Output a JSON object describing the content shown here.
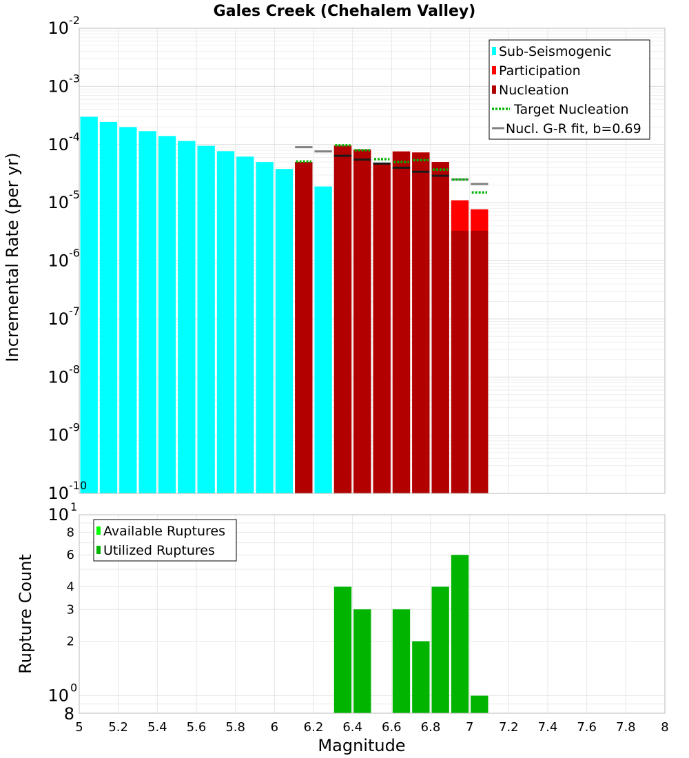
{
  "chart_data": [
    {
      "type": "bar",
      "title": "Gales Creek (Chehalem Valley)",
      "xlabel": "",
      "ylabel": "Incremental Rate (per yr)",
      "yscale": "log",
      "xlim": [
        5,
        8
      ],
      "ylim": [
        1e-10,
        0.01
      ],
      "y_tick_exponents": [
        "-10",
        "-9",
        "-8",
        "-7",
        "-6",
        "-5",
        "-4",
        "-3",
        "-2"
      ],
      "y_tick_base": "10",
      "bin_width": 0.1,
      "legend": {
        "placement": "top-right",
        "entries": [
          {
            "label": "Sub-Seismogenic",
            "color": "#00ffff",
            "style": "bar"
          },
          {
            "label": "Participation",
            "color": "#ff0000",
            "style": "bar"
          },
          {
            "label": "Nucleation",
            "color": "#b20000",
            "style": "bar"
          },
          {
            "label": "Target Nucleation",
            "color": "#00b400",
            "style": "dotted"
          },
          {
            "label": "Nucl. G-R fit, b=0.69",
            "color": "#808080",
            "style": "line"
          }
        ]
      },
      "series": [
        {
          "name": "Sub-Seismogenic",
          "color": "#00ffff",
          "x": [
            5.05,
            5.15,
            5.25,
            5.35,
            5.45,
            5.55,
            5.65,
            5.75,
            5.85,
            5.95,
            6.05,
            6.25
          ],
          "values": [
            0.0003,
            0.000245,
            0.0002,
            0.00017,
            0.00014,
            0.000115,
            9.5e-05,
            7.7e-05,
            6.2e-05,
            5e-05,
            3.8e-05,
            1.9e-05
          ]
        },
        {
          "name": "Participation",
          "color": "#ff0000",
          "x": [
            6.15,
            6.35,
            6.45,
            6.55,
            6.65,
            6.75,
            6.85,
            6.95,
            7.05
          ],
          "values": [
            5e-05,
            9.6e-05,
            8.2e-05,
            4.8e-05,
            7.6e-05,
            7.3e-05,
            5e-05,
            1.1e-05,
            7.7e-06
          ]
        },
        {
          "name": "Nucleation",
          "color": "#b20000",
          "x": [
            6.15,
            6.35,
            6.45,
            6.55,
            6.65,
            6.75,
            6.85,
            6.95,
            7.05
          ],
          "values": [
            5e-05,
            9.6e-05,
            8.2e-05,
            4.8e-05,
            7.6e-05,
            7.3e-05,
            5e-05,
            3.3e-06,
            3.3e-06
          ]
        },
        {
          "name": "Target Nucleation",
          "color": "#00b400",
          "x": [
            6.15,
            6.35,
            6.45,
            6.55,
            6.65,
            6.75,
            6.85,
            6.95,
            7.05
          ],
          "values": [
            5.1e-05,
            9.7e-05,
            8e-05,
            5.6e-05,
            5e-05,
            5.4e-05,
            3.7e-05,
            2.5e-05,
            1.5e-05
          ]
        },
        {
          "name": "Nucl. G-R fit, b=0.69",
          "color": "#808080",
          "x": [
            6.15,
            6.25,
            6.35,
            6.45,
            6.55,
            6.65,
            6.75,
            6.85,
            6.95,
            7.05
          ],
          "values": [
            9e-05,
            7.6e-05,
            6.4e-05,
            5.5e-05,
            4.7e-05,
            4e-05,
            3.4e-05,
            2.9e-05,
            2.5e-05,
            2.1e-05
          ]
        }
      ]
    },
    {
      "type": "bar",
      "title": "",
      "xlabel": "Magnitude",
      "ylabel": "Rupture Count",
      "yscale": "log",
      "xlim": [
        5,
        8
      ],
      "ylim": [
        0.8,
        10
      ],
      "x_ticks": [
        "5",
        "5.2",
        "5.4",
        "5.6",
        "5.8",
        "6",
        "6.2",
        "6.4",
        "6.6",
        "6.8",
        "7",
        "7.2",
        "7.4",
        "7.6",
        "7.8",
        "8"
      ],
      "y_ticks": [
        {
          "value": 2,
          "label": "2"
        },
        {
          "value": 3,
          "label": "3"
        },
        {
          "value": 4,
          "label": "4"
        },
        {
          "value": 6,
          "label": "6"
        },
        {
          "value": 8,
          "label": "8"
        }
      ],
      "y_decade_ticks": [
        {
          "value": 1,
          "base": "10",
          "exp": "0"
        },
        {
          "value": 10,
          "base": "10",
          "exp": "1"
        }
      ],
      "y_bottom_label": "8",
      "bin_width": 0.1,
      "legend": {
        "placement": "top-left",
        "entries": [
          {
            "label": "Available Ruptures",
            "color": "#00ff00",
            "style": "bar"
          },
          {
            "label": "Utilized Ruptures",
            "color": "#00b400",
            "style": "bar"
          }
        ]
      },
      "series": [
        {
          "name": "Utilized Ruptures",
          "color": "#00b400",
          "x": [
            6.35,
            6.45,
            6.65,
            6.75,
            6.85,
            6.95,
            7.05
          ],
          "values": [
            4,
            3,
            3,
            2,
            4,
            6,
            1
          ]
        }
      ]
    }
  ]
}
